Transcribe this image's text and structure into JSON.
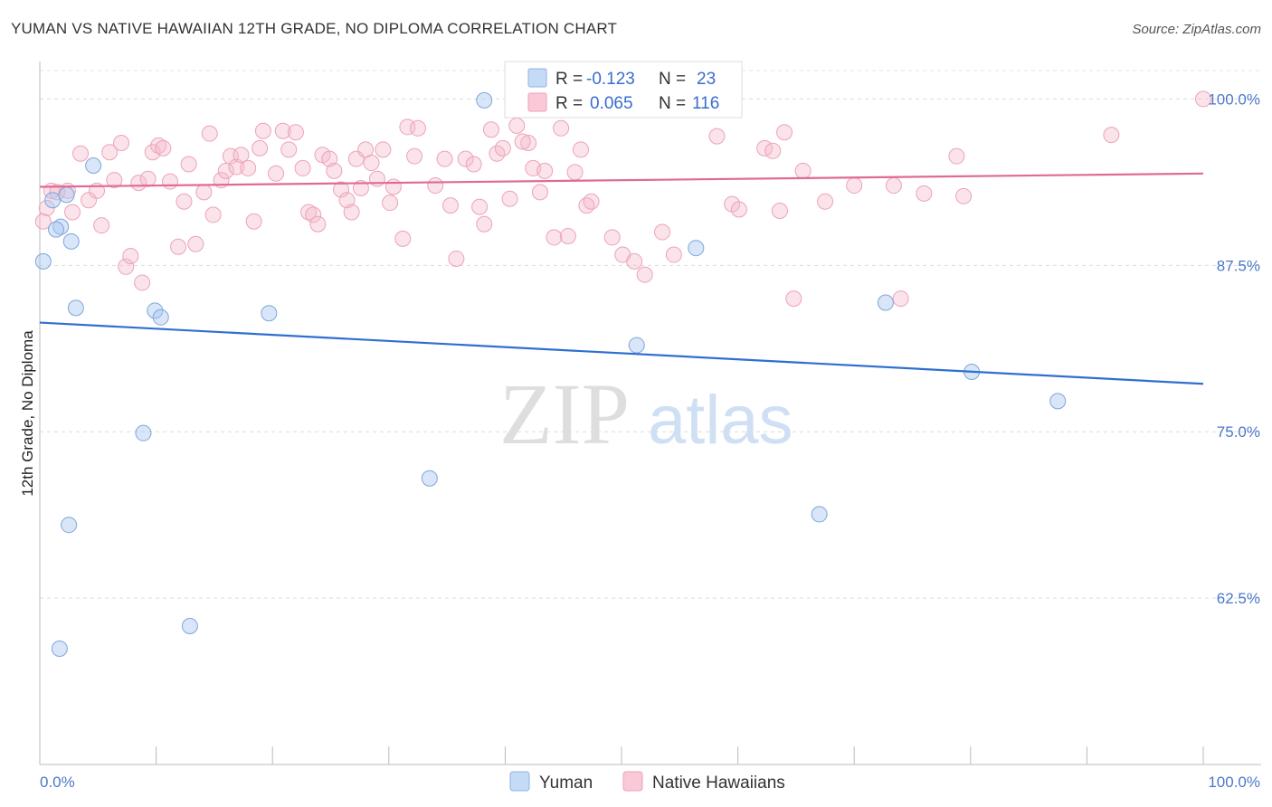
{
  "header": {
    "title": "YUMAN VS NATIVE HAWAIIAN 12TH GRADE, NO DIPLOMA CORRELATION CHART",
    "source": "Source: ZipAtlas.com"
  },
  "watermark": {
    "zip": "ZIP",
    "atlas": "atlas"
  },
  "chart_data": {
    "type": "scatter",
    "ylabel": "12th Grade, No Diploma",
    "xlim": [
      0,
      100
    ],
    "ylim": [
      50,
      102
    ],
    "y_ticks": [
      {
        "value": 100,
        "label": "100.0%"
      },
      {
        "value": 87.5,
        "label": "87.5%"
      },
      {
        "value": 75,
        "label": "75.0%"
      },
      {
        "value": 62.5,
        "label": "62.5%"
      }
    ],
    "x_tick_labels": {
      "left": "0.0%",
      "right": "100.0%"
    },
    "grid": true,
    "legend_position": "top-center",
    "series": [
      {
        "name": "Yuman",
        "color": "#a8c8f0",
        "line_color": "#2f6fd0",
        "R_label": "R =",
        "R": "-0.123",
        "N_label": "N =",
        "N": "23",
        "trend": {
          "x": [
            0,
            100
          ],
          "y": [
            83.2,
            78.6
          ]
        },
        "points": [
          [
            0.3,
            87.8
          ],
          [
            1.1,
            92.4
          ],
          [
            1.8,
            90.4
          ],
          [
            2.3,
            92.8
          ],
          [
            2.7,
            89.3
          ],
          [
            4.6,
            95.0
          ],
          [
            3.1,
            84.3
          ],
          [
            9.9,
            84.1
          ],
          [
            10.4,
            83.6
          ],
          [
            19.7,
            83.9
          ],
          [
            8.9,
            74.9
          ],
          [
            2.5,
            68.0
          ],
          [
            1.7,
            58.7
          ],
          [
            12.9,
            60.4
          ],
          [
            33.5,
            71.5
          ],
          [
            38.2,
            99.9
          ],
          [
            51.3,
            81.5
          ],
          [
            56.4,
            88.8
          ],
          [
            67.0,
            68.8
          ],
          [
            72.7,
            84.7
          ],
          [
            80.1,
            79.5
          ],
          [
            87.5,
            77.3
          ],
          [
            1.4,
            90.2
          ]
        ]
      },
      {
        "name": "Native Hawaiians",
        "color": "#f5b8cb",
        "line_color": "#e06a93",
        "R_label": "R =",
        "R": "0.065",
        "N_label": "N =",
        "N": "116",
        "trend": {
          "x": [
            0,
            100
          ],
          "y": [
            93.4,
            94.4
          ]
        },
        "points": [
          [
            0.3,
            90.8
          ],
          [
            0.6,
            91.8
          ],
          [
            1.0,
            93.1
          ],
          [
            1.5,
            93.0
          ],
          [
            2.4,
            93.1
          ],
          [
            2.8,
            91.5
          ],
          [
            3.5,
            95.9
          ],
          [
            4.2,
            92.4
          ],
          [
            4.9,
            93.1
          ],
          [
            5.3,
            90.5
          ],
          [
            6.0,
            96.0
          ],
          [
            6.4,
            93.9
          ],
          [
            7.0,
            96.7
          ],
          [
            7.4,
            87.4
          ],
          [
            7.8,
            88.2
          ],
          [
            8.5,
            93.7
          ],
          [
            8.8,
            86.2
          ],
          [
            9.3,
            94.0
          ],
          [
            9.7,
            96.0
          ],
          [
            10.2,
            96.5
          ],
          [
            10.6,
            96.3
          ],
          [
            11.2,
            93.8
          ],
          [
            11.9,
            88.9
          ],
          [
            12.4,
            92.3
          ],
          [
            12.8,
            95.1
          ],
          [
            13.4,
            89.1
          ],
          [
            14.1,
            93.0
          ],
          [
            14.6,
            97.4
          ],
          [
            14.9,
            91.3
          ],
          [
            15.6,
            93.9
          ],
          [
            16.0,
            94.6
          ],
          [
            16.4,
            95.7
          ],
          [
            16.9,
            94.9
          ],
          [
            17.3,
            95.8
          ],
          [
            17.9,
            94.8
          ],
          [
            18.4,
            90.8
          ],
          [
            18.9,
            96.3
          ],
          [
            19.2,
            97.6
          ],
          [
            20.3,
            94.4
          ],
          [
            20.9,
            97.6
          ],
          [
            21.4,
            96.2
          ],
          [
            22.0,
            97.5
          ],
          [
            22.6,
            94.8
          ],
          [
            23.1,
            91.5
          ],
          [
            23.5,
            91.3
          ],
          [
            23.9,
            90.6
          ],
          [
            24.3,
            95.8
          ],
          [
            24.9,
            95.5
          ],
          [
            25.3,
            94.6
          ],
          [
            25.9,
            93.2
          ],
          [
            26.4,
            92.4
          ],
          [
            26.8,
            91.5
          ],
          [
            27.2,
            95.5
          ],
          [
            27.6,
            93.3
          ],
          [
            28.0,
            96.2
          ],
          [
            28.5,
            95.2
          ],
          [
            29.0,
            94.0
          ],
          [
            29.5,
            96.2
          ],
          [
            30.1,
            92.2
          ],
          [
            30.4,
            93.4
          ],
          [
            31.2,
            89.5
          ],
          [
            31.6,
            97.9
          ],
          [
            32.2,
            95.7
          ],
          [
            32.5,
            97.8
          ],
          [
            34.0,
            93.5
          ],
          [
            34.8,
            95.5
          ],
          [
            35.3,
            92.0
          ],
          [
            35.8,
            88.0
          ],
          [
            36.6,
            95.5
          ],
          [
            37.3,
            95.1
          ],
          [
            37.8,
            91.9
          ],
          [
            38.2,
            90.6
          ],
          [
            38.8,
            97.7
          ],
          [
            39.3,
            95.9
          ],
          [
            39.8,
            96.3
          ],
          [
            40.4,
            92.5
          ],
          [
            41.0,
            98.0
          ],
          [
            42.0,
            96.7
          ],
          [
            42.4,
            94.8
          ],
          [
            43.0,
            93.0
          ],
          [
            43.4,
            94.6
          ],
          [
            44.2,
            89.6
          ],
          [
            44.8,
            97.8
          ],
          [
            45.4,
            89.7
          ],
          [
            46.0,
            94.5
          ],
          [
            46.5,
            96.2
          ],
          [
            47.0,
            92.0
          ],
          [
            47.4,
            92.3
          ],
          [
            49.2,
            89.6
          ],
          [
            50.1,
            88.3
          ],
          [
            51.1,
            87.8
          ],
          [
            52.0,
            86.8
          ],
          [
            53.5,
            90.0
          ],
          [
            54.5,
            88.3
          ],
          [
            57.0,
            99.9
          ],
          [
            58.2,
            97.2
          ],
          [
            59.0,
            100.0
          ],
          [
            59.5,
            92.1
          ],
          [
            60.1,
            91.7
          ],
          [
            62.3,
            96.3
          ],
          [
            63.0,
            96.1
          ],
          [
            63.6,
            91.6
          ],
          [
            64.0,
            97.5
          ],
          [
            64.8,
            85.0
          ],
          [
            65.6,
            94.6
          ],
          [
            67.5,
            92.3
          ],
          [
            70.0,
            93.5
          ],
          [
            73.4,
            93.5
          ],
          [
            74.0,
            85.0
          ],
          [
            76.0,
            92.9
          ],
          [
            78.8,
            95.7
          ],
          [
            79.4,
            92.7
          ],
          [
            92.1,
            97.3
          ],
          [
            100.0,
            100.0
          ],
          [
            41.5,
            96.8
          ],
          [
            44.0,
            100.0
          ]
        ]
      }
    ]
  }
}
